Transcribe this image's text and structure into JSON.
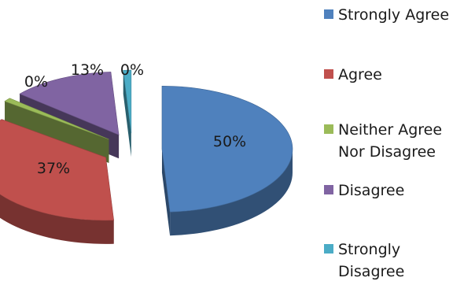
{
  "chart_data": {
    "type": "pie",
    "style": "3d-exploded",
    "categories": [
      "Strongly Agree",
      "Agree",
      "Neither Agree Nor Disagree",
      "Disagree",
      "Strongly Disagree"
    ],
    "values": [
      50,
      37,
      0,
      13,
      0
    ],
    "data_labels": [
      "50%",
      "37%",
      "0%",
      "13%",
      "0%"
    ],
    "colors": [
      "#4f81bd",
      "#c0504d",
      "#9bbb59",
      "#8064a2",
      "#4bacc6"
    ],
    "legend": {
      "position": "right",
      "entries": [
        {
          "lines": [
            "Strongly Agree"
          ]
        },
        {
          "lines": [
            "Agree"
          ]
        },
        {
          "lines": [
            "Neither Agree",
            "Nor Disagree"
          ]
        },
        {
          "lines": [
            "Disagree"
          ]
        },
        {
          "lines": [
            "Strongly",
            "Disagree"
          ]
        }
      ]
    }
  }
}
